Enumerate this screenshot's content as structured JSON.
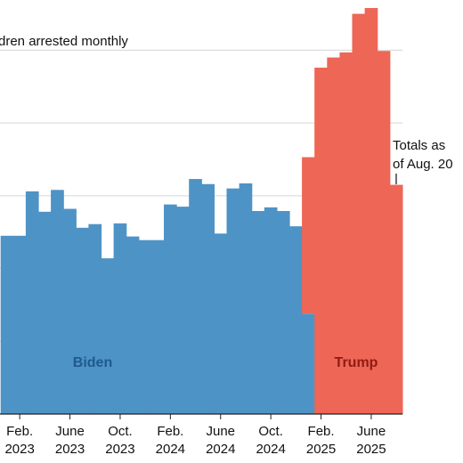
{
  "chart_data": {
    "type": "bar",
    "title": "dren arrested monthly",
    "annotation": [
      "Totals as",
      "of Aug. 20"
    ],
    "labels": [
      {
        "text": "Biden",
        "color": "#1f5a8c"
      },
      {
        "text": "Trump",
        "color": "#8e1b16"
      }
    ],
    "categories": [
      null,
      "Feb. 2023",
      null,
      null,
      null,
      "June 2023",
      null,
      null,
      null,
      "Oct. 2023",
      null,
      null,
      null,
      "Feb. 2024",
      null,
      null,
      null,
      "June 2024",
      null,
      null,
      null,
      "Oct. 2024",
      null,
      null,
      null,
      "Feb. 2025",
      null,
      null,
      null,
      "June 2025",
      null,
      null
    ],
    "series": [
      {
        "name": "Biden",
        "color": "#4e93c6",
        "values": [
          2.45,
          2.45,
          3.06,
          2.78,
          3.08,
          2.82,
          2.56,
          2.61,
          2.14,
          2.62,
          2.44,
          2.39,
          2.39,
          2.88,
          2.85,
          3.23,
          3.16,
          2.48,
          3.1,
          3.17,
          2.79,
          2.84,
          2.79,
          2.58,
          1.38,
          null,
          null,
          null,
          null,
          null,
          null,
          null
        ]
      },
      {
        "name": "Trump",
        "color": "#ee6655",
        "values": [
          null,
          null,
          null,
          null,
          null,
          null,
          null,
          null,
          null,
          null,
          null,
          null,
          null,
          null,
          null,
          null,
          null,
          null,
          null,
          null,
          null,
          null,
          null,
          null,
          2.15,
          4.76,
          4.9,
          4.97,
          5.5,
          5.58,
          4.99,
          3.15
        ]
      }
    ],
    "stacked": true,
    "ylim": [
      0,
      5.69
    ],
    "yticks": [
      1,
      2,
      3,
      4,
      5
    ],
    "grid": true
  }
}
